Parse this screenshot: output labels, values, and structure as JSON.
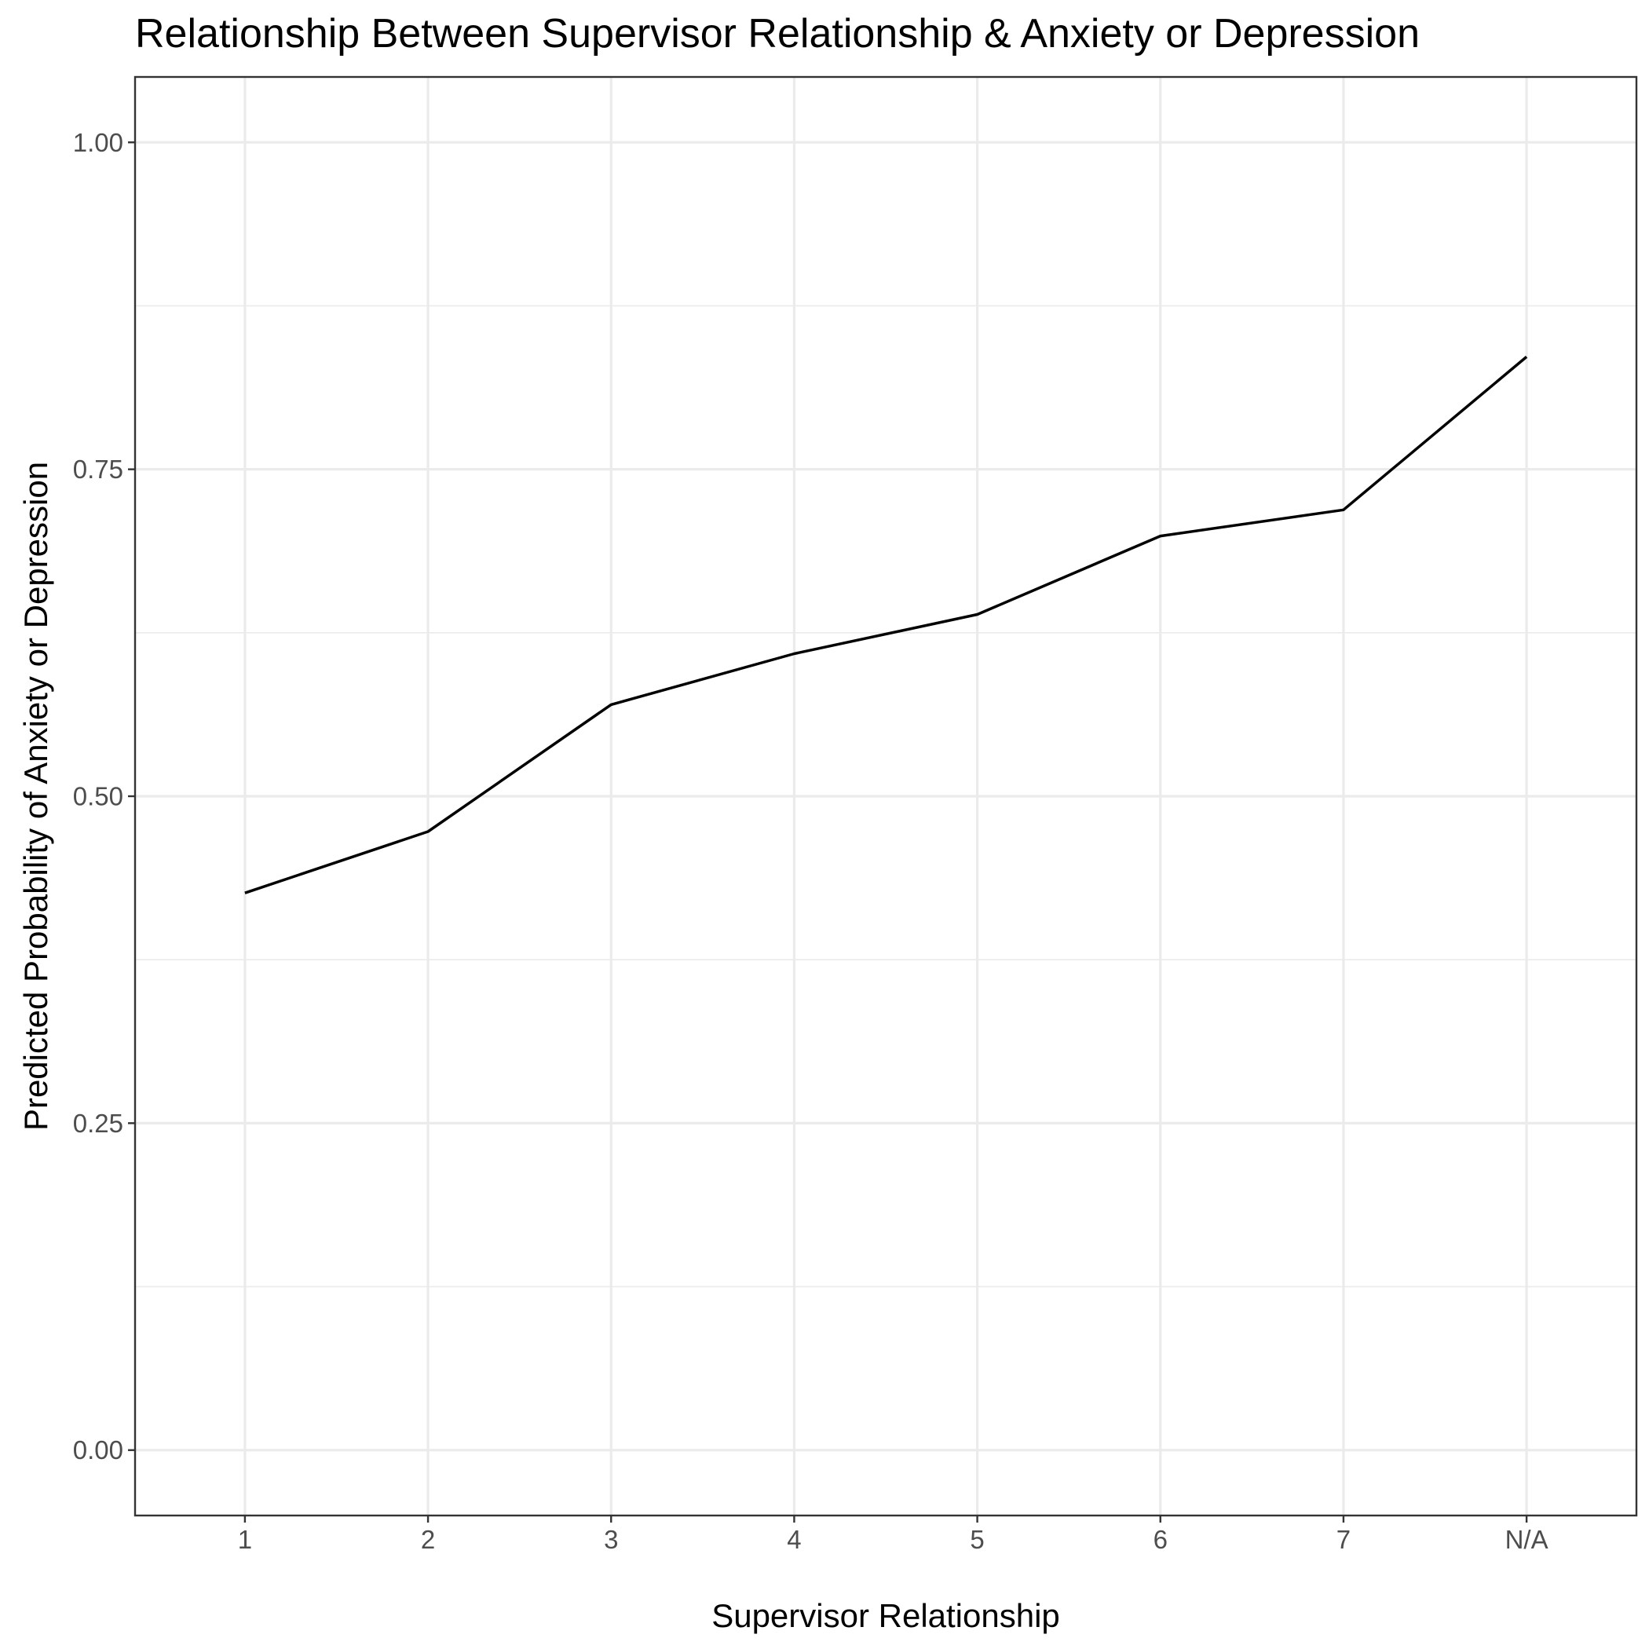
{
  "chart_data": {
    "type": "line",
    "title": "Relationship Between Supervisor Relationship & Anxiety or Depression",
    "xlabel": "Supervisor Relationship",
    "ylabel": "Predicted Probability of Anxiety or Depression",
    "categories": [
      "1",
      "2",
      "3",
      "4",
      "5",
      "6",
      "7",
      "N/A"
    ],
    "series": [
      {
        "values": [
          0.426,
          0.473,
          0.57,
          0.609,
          0.639,
          0.699,
          0.719,
          0.836
        ]
      }
    ],
    "ylim": [
      -0.05,
      1.05
    ],
    "y_ticks": [
      0.0,
      0.25,
      0.5,
      0.75,
      1.0
    ],
    "y_tick_labels": [
      "0.00",
      "0.25",
      "0.50",
      "0.75",
      "1.00"
    ],
    "y_minor_ticks": [
      0.125,
      0.375,
      0.625,
      0.875
    ],
    "grid": true,
    "line_color": "#000000"
  }
}
